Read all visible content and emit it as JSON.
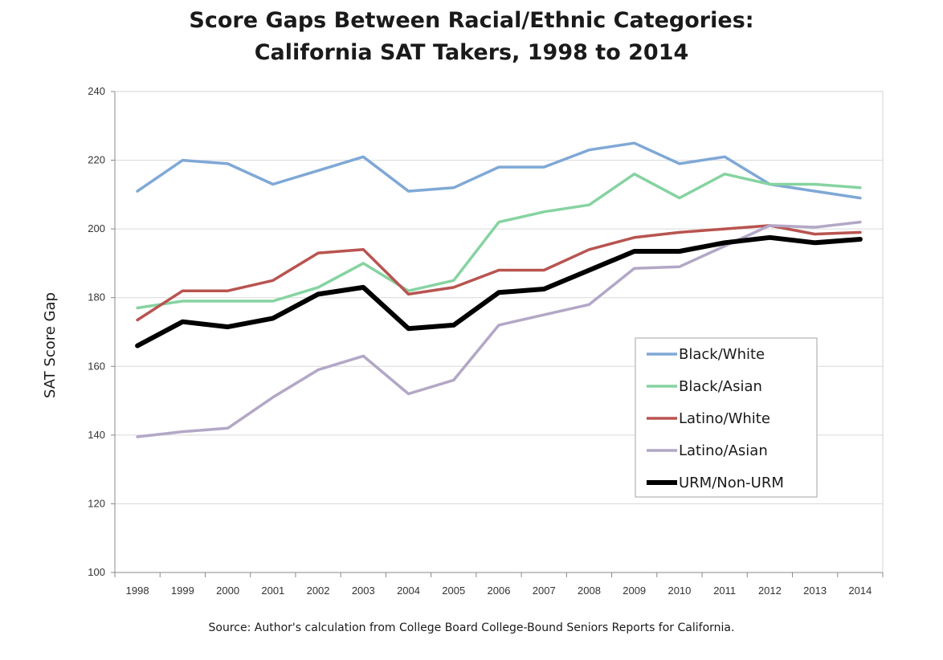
{
  "chart_data": {
    "type": "line",
    "title": "Score Gaps Between Racial/Ethnic Categories:",
    "subtitle": "California SAT Takers, 1998 to 2014",
    "xlabel": "",
    "ylabel": "SAT Score Gap",
    "ylim": [
      100,
      240
    ],
    "yticks": [
      100,
      120,
      140,
      160,
      180,
      200,
      220,
      240
    ],
    "grid": true,
    "legend_position": "right",
    "categories": [
      "1998",
      "1999",
      "2000",
      "2001",
      "2002",
      "2003",
      "2004",
      "2005",
      "2006",
      "2007",
      "2008",
      "2009",
      "2010",
      "2011",
      "2012",
      "2013",
      "2014"
    ],
    "series": [
      {
        "name": "Black/White",
        "color": "#7fa8d6",
        "width": 3.5,
        "values": [
          211,
          220,
          219,
          213,
          217,
          221,
          211,
          212,
          218,
          218,
          223,
          225,
          219,
          221,
          213,
          211,
          209
        ]
      },
      {
        "name": "Black/Asian",
        "color": "#86d3a1",
        "width": 3.5,
        "values": [
          177,
          179,
          179,
          179,
          183,
          190,
          182,
          185,
          202,
          205,
          207,
          216,
          209,
          216,
          213,
          213,
          212
        ]
      },
      {
        "name": "Latino/White",
        "color": "#b85450",
        "width": 3.5,
        "values": [
          173.5,
          182,
          182,
          185,
          193,
          194,
          181,
          183,
          188,
          188,
          194,
          197.5,
          199,
          200,
          201,
          198.5,
          199
        ]
      },
      {
        "name": "Latino/Asian",
        "color": "#b3a7c6",
        "width": 3.5,
        "values": [
          139.5,
          141,
          142,
          151,
          159,
          163,
          152,
          156,
          172,
          175,
          178,
          188.5,
          189,
          195,
          201,
          200.5,
          202
        ]
      },
      {
        "name": "URM/Non-URM",
        "color": "#000000",
        "width": 6,
        "values": [
          166,
          173,
          171.5,
          174,
          181,
          183,
          171,
          172,
          181.5,
          182.5,
          188,
          193.5,
          193.5,
          196,
          197.5,
          196,
          197
        ]
      }
    ]
  },
  "source": "Source:  Author's calculation from College Board College-Bound Seniors Reports for California."
}
